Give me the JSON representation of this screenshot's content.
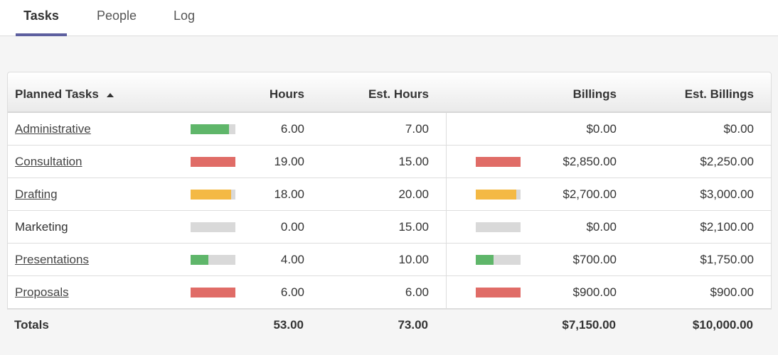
{
  "tabs": [
    {
      "label": "Tasks",
      "active": true
    },
    {
      "label": "People",
      "active": false
    },
    {
      "label": "Log",
      "active": false
    }
  ],
  "table": {
    "headers": [
      "Planned Tasks",
      "Hours",
      "Est. Hours",
      "Billings",
      "Est. Billings"
    ],
    "rows": [
      {
        "task": "Administrative",
        "link": true,
        "hours": "6.00",
        "est_hours": "7.00",
        "billings": "$0.00",
        "est_billings": "$0.00",
        "hours_bar": "#5fb66a"
      },
      {
        "task": "Consultation",
        "link": true,
        "hours": "19.00",
        "est_hours": "15.00",
        "billings": "$2,850.00",
        "est_billings": "$2,250.00",
        "hours_bar": "#e06c67",
        "billings_bar": "#e06c67"
      },
      {
        "task": "Drafting",
        "link": true,
        "hours": "18.00",
        "est_hours": "20.00",
        "billings": "$2,700.00",
        "est_billings": "$3,000.00",
        "hours_bar": "#f4b944",
        "billings_bar": "#f4b944"
      },
      {
        "task": "Marketing",
        "link": false,
        "hours": "0.00",
        "est_hours": "15.00",
        "billings": "$0.00",
        "est_billings": "$2,100.00",
        "hours_bar": "#d9d9d9",
        "billings_bar": "#d9d9d9"
      },
      {
        "task": "Presentations",
        "link": true,
        "hours": "4.00",
        "est_hours": "10.00",
        "billings": "$700.00",
        "est_billings": "$1,750.00",
        "hours_bar": "#5fb66a",
        "billings_bar": "#5fb66a"
      },
      {
        "task": "Proposals",
        "link": true,
        "hours": "6.00",
        "est_hours": "6.00",
        "billings": "$900.00",
        "est_billings": "$900.00",
        "hours_bar": "#e06c67",
        "billings_bar": "#e06c67"
      }
    ],
    "totals": {
      "label": "Totals",
      "hours": "53.00",
      "est_hours": "73.00",
      "billings": "$7,150.00",
      "est_billings": "$10,000.00"
    }
  }
}
